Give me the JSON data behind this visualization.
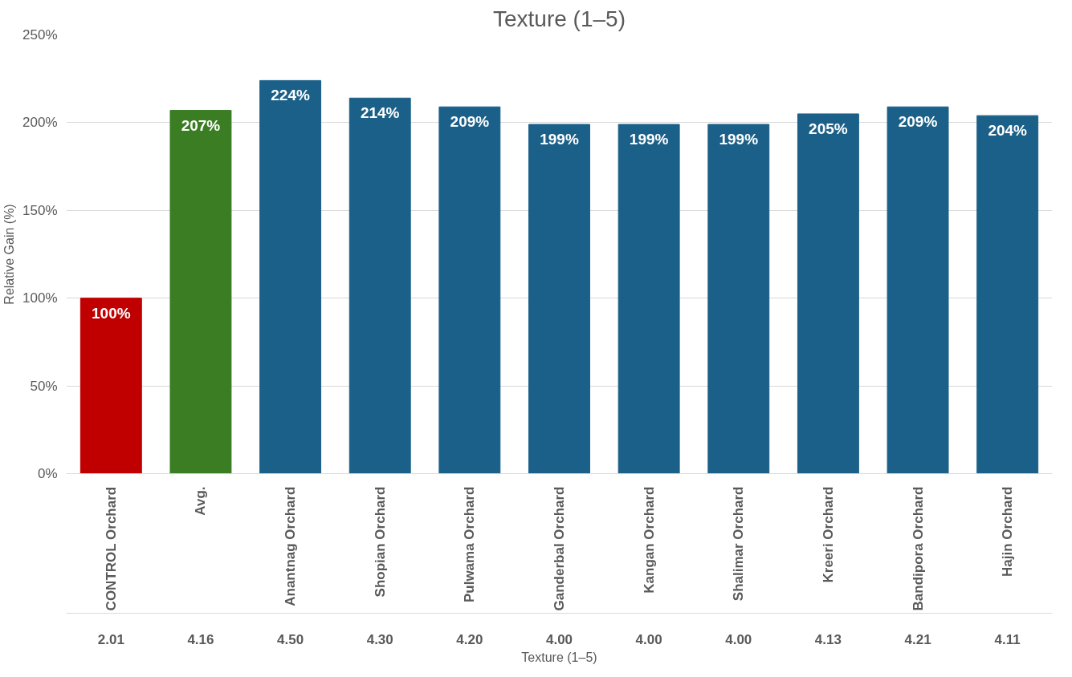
{
  "chart_data": {
    "type": "bar",
    "title": "Texture (1–5)",
    "xlabel": "Texture (1–5)",
    "ylabel": "Relative Gain (%)",
    "categories": [
      "CONTROL Orchard",
      "Avg.",
      "Anantnag Orchard",
      "Shopian Orchard",
      "Pulwama Orchard",
      "Ganderbal Orchard",
      "Kangan Orchard",
      "Shalimar Orchard",
      "Kreeri Orchard",
      "Bandipora Orchard",
      "Hajin Orchard"
    ],
    "values": [
      100,
      207,
      224,
      214,
      209,
      199,
      199,
      199,
      205,
      209,
      204
    ],
    "value_labels": [
      "100%",
      "207%",
      "224%",
      "214%",
      "209%",
      "199%",
      "199%",
      "199%",
      "205%",
      "209%",
      "204%"
    ],
    "colors": [
      "#c00000",
      "#3a7d22",
      "#1b6088",
      "#1b6088",
      "#1b6088",
      "#1b6088",
      "#1b6088",
      "#1b6088",
      "#1b6088",
      "#1b6088",
      "#1b6088"
    ],
    "ylim": [
      0,
      250
    ],
    "yticks": [
      {
        "value": 0,
        "label": "0%"
      },
      {
        "value": 50,
        "label": "50%"
      },
      {
        "value": 100,
        "label": "100%"
      },
      {
        "value": 150,
        "label": "150%"
      },
      {
        "value": 200,
        "label": "200%"
      },
      {
        "value": 250,
        "label": "250%"
      }
    ],
    "grid": "y",
    "annotations": [
      "2.01",
      "4.16",
      "4.50",
      "4.30",
      "4.20",
      "4.00",
      "4.00",
      "4.00",
      "4.13",
      "4.21",
      "4.11"
    ]
  }
}
